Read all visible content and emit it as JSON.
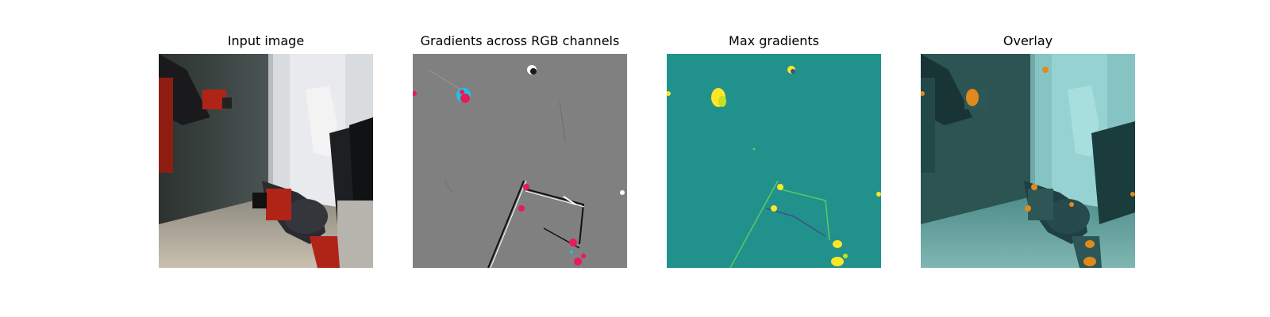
{
  "figure": {
    "panels": [
      {
        "title": "Input image"
      },
      {
        "title": "Gradients across RGB channels"
      },
      {
        "title": "Max gradients"
      },
      {
        "title": "Overlay"
      }
    ],
    "colors": {
      "background": "#ffffff",
      "gradient_gray": "#808080",
      "max_grad_teal": "#21918c",
      "max_grad_yellow": "#fde725",
      "robot_red": "#b02418",
      "overlay_orange": "#e08a1c"
    }
  }
}
